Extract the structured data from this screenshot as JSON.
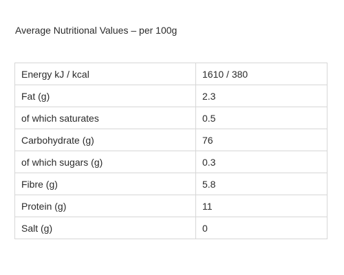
{
  "heading": "Average Nutritional Values – per 100g",
  "rows": [
    {
      "label": "Energy kJ / kcal",
      "value": "1610 / 380"
    },
    {
      "label": "Fat (g)",
      "value": "2.3"
    },
    {
      "label": "of which saturates",
      "value": "0.5"
    },
    {
      "label": "Carbohydrate (g)",
      "value": "76"
    },
    {
      "label": "of which sugars (g)",
      "value": "0.3"
    },
    {
      "label": "Fibre (g)",
      "value": "5.8"
    },
    {
      "label": "Protein (g)",
      "value": "11"
    },
    {
      "label": "Salt (g)",
      "value": "0"
    }
  ]
}
